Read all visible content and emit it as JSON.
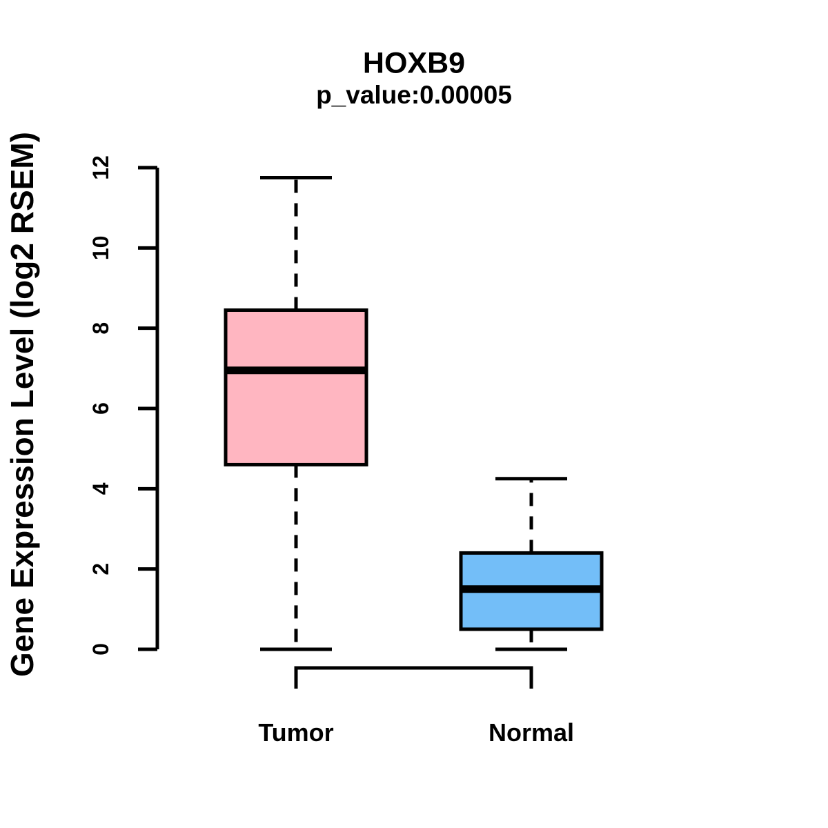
{
  "figure": {
    "background": "#ffffff",
    "line_color": "#000000"
  },
  "chart_data": {
    "type": "boxplot",
    "title": "HOXB9",
    "subtitle": "p_value:0.00005",
    "ylabel": "Gene Expression Level (log2 RSEM)",
    "xlabel": "",
    "ylim": [
      0,
      12
    ],
    "yticks": [
      0,
      2,
      4,
      6,
      8,
      10,
      12
    ],
    "grid": false,
    "legend": false,
    "categories": [
      "Tumor",
      "Normal"
    ],
    "series": [
      {
        "name": "Tumor",
        "whisker_low": 0,
        "q1": 4.6,
        "median": 6.95,
        "q3": 8.45,
        "whisker_high": 11.75,
        "fill": "#FFB6C1"
      },
      {
        "name": "Normal",
        "whisker_low": 0,
        "q1": 0.5,
        "median": 1.5,
        "q3": 2.4,
        "whisker_high": 4.25,
        "fill": "#73BEF8"
      }
    ]
  }
}
